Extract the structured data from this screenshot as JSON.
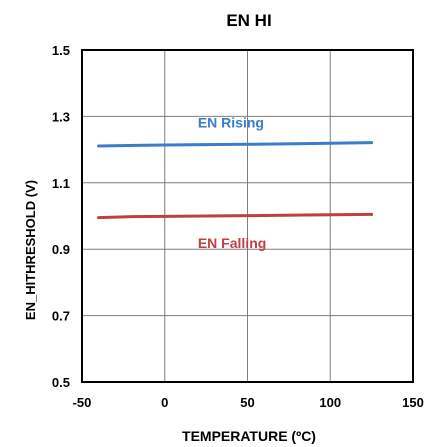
{
  "chart_data": {
    "type": "line",
    "title": "EN HI",
    "xlabel": "TEMPERATURE (ºC)",
    "ylabel": "EN_HITHRESHOLD (V)",
    "xlim": [
      -50,
      150
    ],
    "ylim": [
      0.5,
      1.5
    ],
    "x_ticks": [
      "-50",
      "0",
      "50",
      "100",
      "150"
    ],
    "y_ticks": [
      "0.5",
      "0.7",
      "0.9",
      "1.1",
      "1.3",
      "1.5"
    ],
    "grid": true,
    "series": [
      {
        "name": "EN Rising",
        "color": "#3a7dc9",
        "x": [
          -40,
          0,
          25,
          50,
          85,
          125
        ],
        "y": [
          1.211,
          1.214,
          1.215,
          1.216,
          1.218,
          1.221
        ]
      },
      {
        "name": "EN Falling",
        "color": "#c0403f",
        "x": [
          -40,
          -20,
          0,
          25,
          50,
          85,
          125
        ],
        "y": [
          0.995,
          0.998,
          0.999,
          1.0,
          1.001,
          1.003,
          1.005
        ]
      }
    ]
  }
}
